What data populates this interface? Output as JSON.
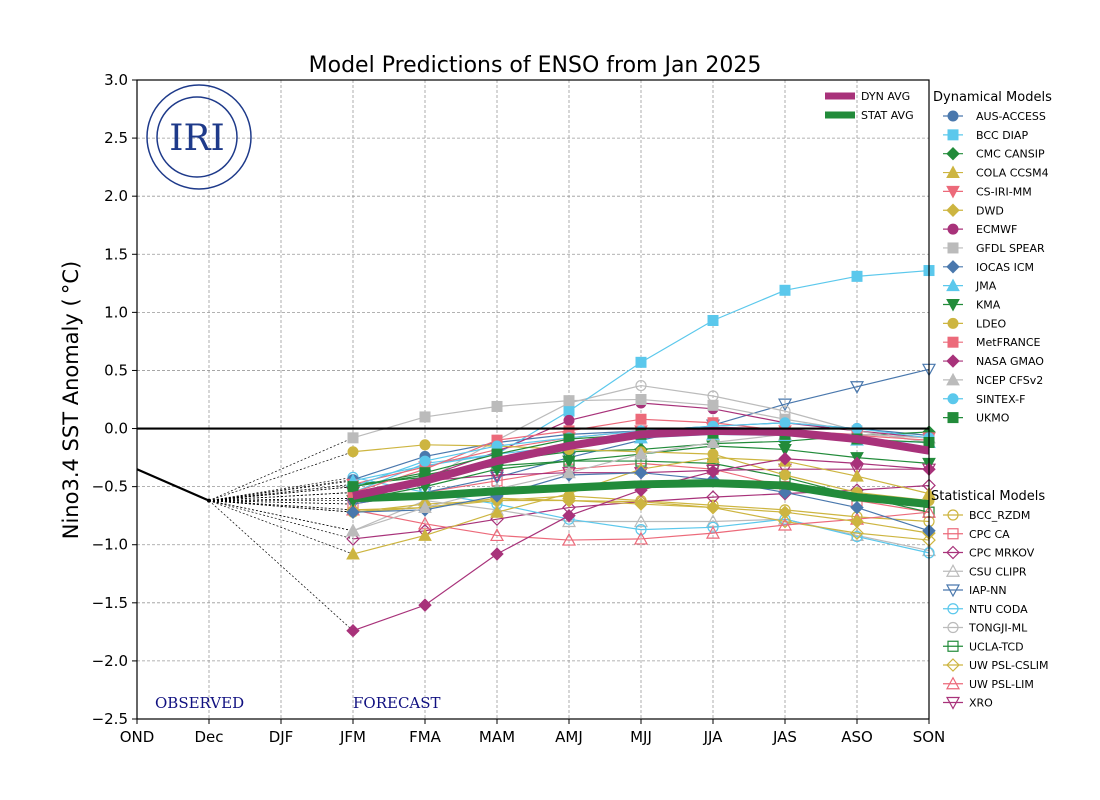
{
  "chart_data": {
    "type": "line",
    "title": "Model Predictions of ENSO from Jan 2025",
    "xlabel": "",
    "ylabel": "Nino3.4 SST Anomaly ( °C)",
    "categories": [
      "OND",
      "Dec",
      "DJF",
      "JFM",
      "FMA",
      "MAM",
      "AMJ",
      "MJJ",
      "JJA",
      "JAS",
      "ASO",
      "SON"
    ],
    "ylim": [
      -2.5,
      3.0
    ],
    "yticks": [
      "3.0",
      "2.5",
      "2.0",
      "1.5",
      "1.0",
      "0.5",
      "0.0",
      "−0.5",
      "−1.0",
      "−1.5",
      "−2.0",
      "−2.5"
    ],
    "ytick_values": [
      3.0,
      2.5,
      2.0,
      1.5,
      1.0,
      0.5,
      0.0,
      -0.5,
      -1.0,
      -1.5,
      -2.0,
      -2.5
    ],
    "grid": true,
    "annotations": {
      "observed": "OBSERVED",
      "forecast": "FORECAST",
      "logo": "IRI"
    },
    "observed": {
      "x": [
        "OND",
        "Dec"
      ],
      "values": [
        -0.35,
        -0.62
      ]
    },
    "forecast_start": [
      "JFM",
      "FMA",
      "MAM",
      "AMJ",
      "MJJ",
      "JJA",
      "JAS",
      "ASO",
      "SON"
    ],
    "averages": [
      {
        "name": "DYN AVG",
        "color": "#a8327a",
        "values": [
          -0.58,
          -0.45,
          -0.28,
          -0.15,
          -0.05,
          -0.02,
          -0.03,
          -0.09,
          -0.19
        ]
      },
      {
        "name": "STAT AVG",
        "color": "#228b3a",
        "values": [
          -0.6,
          -0.58,
          -0.54,
          -0.51,
          -0.48,
          -0.47,
          -0.49,
          -0.59,
          -0.65
        ]
      }
    ],
    "legend_dynamical_title": "Dynamical Models",
    "legend_statistical_title": "Statistical Models",
    "dynamical": [
      {
        "name": "AUS-ACCESS",
        "color": "#4a78ad",
        "marker": "circle",
        "values": [
          -0.44,
          -0.24,
          -0.12,
          -0.05,
          -0.02,
          0.02,
          0.05,
          0.0,
          -0.06
        ]
      },
      {
        "name": "BCC DIAP",
        "color": "#5bc8ec",
        "marker": "square",
        "values": [
          -0.55,
          -0.3,
          -0.22,
          0.15,
          0.57,
          0.93,
          1.19,
          1.31,
          1.36
        ]
      },
      {
        "name": "CMC CANSIP",
        "color": "#228b3a",
        "marker": "diamond",
        "values": [
          -0.5,
          -0.4,
          -0.28,
          -0.2,
          -0.18,
          -0.13,
          -0.11,
          -0.06,
          -0.03
        ]
      },
      {
        "name": "COLA CCSM4",
        "color": "#cdb540",
        "marker": "triangle-up",
        "values": [
          -1.08,
          -0.92,
          -0.72,
          -0.56,
          -0.35,
          -0.25,
          -0.28,
          -0.41,
          -0.56
        ]
      },
      {
        "name": "CS-IRI-MM",
        "color": "#ec6a7a",
        "marker": "triangle-down",
        "values": [
          -0.48,
          -0.33,
          -0.18,
          -0.08,
          -0.02,
          0.0,
          -0.02,
          -0.05,
          -0.08
        ]
      },
      {
        "name": "DWD",
        "color": "#cdb540",
        "marker": "diamond",
        "values": [
          -0.72,
          -0.65,
          -0.62,
          -0.62,
          -0.65,
          -0.68,
          -0.72,
          -0.8,
          -0.9
        ]
      },
      {
        "name": "ECMWF",
        "color": "#a8327a",
        "marker": "circle",
        "values": [
          -0.6,
          -0.42,
          -0.2,
          0.07,
          0.22,
          0.17,
          0.05,
          -0.02,
          -0.08
        ]
      },
      {
        "name": "GFDL SPEAR",
        "color": "#bbbbbb",
        "marker": "square",
        "values": [
          -0.08,
          0.1,
          0.19,
          0.24,
          0.25,
          0.2,
          0.08,
          -0.02,
          -0.12
        ]
      },
      {
        "name": "IOCAS ICM",
        "color": "#4a78ad",
        "marker": "diamond",
        "values": [
          -0.72,
          -0.7,
          -0.58,
          -0.4,
          -0.38,
          -0.44,
          -0.55,
          -0.68,
          -0.88
        ]
      },
      {
        "name": "JMA",
        "color": "#5bc8ec",
        "marker": "triangle-up",
        "values": [
          -0.45,
          -0.32,
          -0.22,
          -0.15,
          -0.08,
          -0.05,
          -0.06,
          -0.1,
          -0.12
        ]
      },
      {
        "name": "KMA",
        "color": "#228b3a",
        "marker": "triangle-down",
        "values": [
          -0.62,
          -0.5,
          -0.35,
          -0.28,
          -0.22,
          -0.15,
          -0.18,
          -0.25,
          -0.3
        ]
      },
      {
        "name": "LDEO",
        "color": "#cdb540",
        "marker": "circle",
        "values": [
          -0.2,
          -0.14,
          -0.15,
          -0.18,
          -0.2,
          -0.22,
          -0.4,
          -0.55,
          -0.62
        ]
      },
      {
        "name": "MetFRANCE",
        "color": "#ec6a7a",
        "marker": "square",
        "values": [
          -0.55,
          -0.35,
          -0.1,
          -0.02,
          0.08,
          0.05,
          -0.02,
          -0.06,
          -0.1
        ]
      },
      {
        "name": "NASA GMAO",
        "color": "#a8327a",
        "marker": "diamond",
        "values": [
          -1.74,
          -1.52,
          -1.08,
          -0.75,
          -0.53,
          -0.37,
          -0.26,
          -0.3,
          -0.35
        ]
      },
      {
        "name": "NCEP CFSv2",
        "color": "#bbbbbb",
        "marker": "triangle-up",
        "values": [
          -0.88,
          -0.68,
          -0.52,
          -0.38,
          -0.22,
          -0.12,
          -0.05,
          -0.05,
          -0.08
        ]
      },
      {
        "name": "SINTEX-F",
        "color": "#5bc8ec",
        "marker": "circle",
        "values": [
          -0.5,
          -0.28,
          -0.15,
          -0.08,
          -0.02,
          0.02,
          0.05,
          0.0,
          -0.08
        ]
      },
      {
        "name": "UKMO",
        "color": "#228b3a",
        "marker": "square",
        "values": [
          -0.5,
          -0.38,
          -0.22,
          -0.09,
          -0.05,
          -0.04,
          -0.05,
          -0.09,
          -0.12
        ]
      }
    ],
    "statistical": [
      {
        "name": "BCC_RZDM",
        "color": "#cdb540",
        "marker": "circle",
        "values": [
          -0.72,
          -0.68,
          -0.62,
          -0.58,
          -0.62,
          -0.66,
          -0.7,
          -0.76,
          -0.8
        ]
      },
      {
        "name": "CPC CA",
        "color": "#ec6a7a",
        "marker": "square",
        "values": [
          -0.65,
          -0.55,
          -0.45,
          -0.35,
          -0.3,
          -0.35,
          -0.5,
          -0.62,
          -0.72
        ]
      },
      {
        "name": "CPC MRKOV",
        "color": "#a8327a",
        "marker": "diamond",
        "values": [
          -0.95,
          -0.88,
          -0.78,
          -0.68,
          -0.63,
          -0.59,
          -0.56,
          -0.53,
          -0.49
        ]
      },
      {
        "name": "CSU CLIPR",
        "color": "#bbbbbb",
        "marker": "triangle-up",
        "values": [
          -0.88,
          -0.62,
          -0.7,
          -0.8,
          -0.8,
          -0.8,
          -0.78,
          -0.92,
          -1.05
        ]
      },
      {
        "name": "IAP-NN",
        "color": "#4a78ad",
        "marker": "triangle-down",
        "values": [
          -0.65,
          -0.55,
          -0.42,
          -0.25,
          -0.1,
          0.03,
          0.21,
          0.36,
          0.51
        ]
      },
      {
        "name": "NTU CODA",
        "color": "#5bc8ec",
        "marker": "circle",
        "values": [
          -0.42,
          -0.55,
          -0.65,
          -0.78,
          -0.87,
          -0.85,
          -0.78,
          -0.93,
          -1.07
        ]
      },
      {
        "name": "TONGJI-ML",
        "color": "#bbbbbb",
        "marker": "circle",
        "values": [
          -0.6,
          -0.45,
          -0.1,
          0.22,
          0.37,
          0.28,
          0.15,
          -0.02,
          -0.12
        ]
      },
      {
        "name": "UCLA-TCD",
        "color": "#228b3a",
        "marker": "square",
        "values": [
          -0.48,
          -0.42,
          -0.32,
          -0.28,
          -0.28,
          -0.3,
          -0.42,
          -0.58,
          -0.72
        ]
      },
      {
        "name": "UW PSL-CSLIM",
        "color": "#cdb540",
        "marker": "diamond",
        "values": [
          -0.7,
          -0.68,
          -0.6,
          -0.62,
          -0.63,
          -0.68,
          -0.8,
          -0.9,
          -0.96
        ]
      },
      {
        "name": "UW PSL-LIM",
        "color": "#ec6a7a",
        "marker": "triangle-up",
        "values": [
          -0.7,
          -0.82,
          -0.92,
          -0.96,
          -0.95,
          -0.9,
          -0.83,
          -0.78,
          -0.72
        ]
      },
      {
        "name": "XRO",
        "color": "#a8327a",
        "marker": "triangle-down",
        "values": [
          -0.55,
          -0.45,
          -0.4,
          -0.38,
          -0.38,
          -0.36,
          -0.35,
          -0.35,
          -0.35
        ]
      }
    ]
  }
}
